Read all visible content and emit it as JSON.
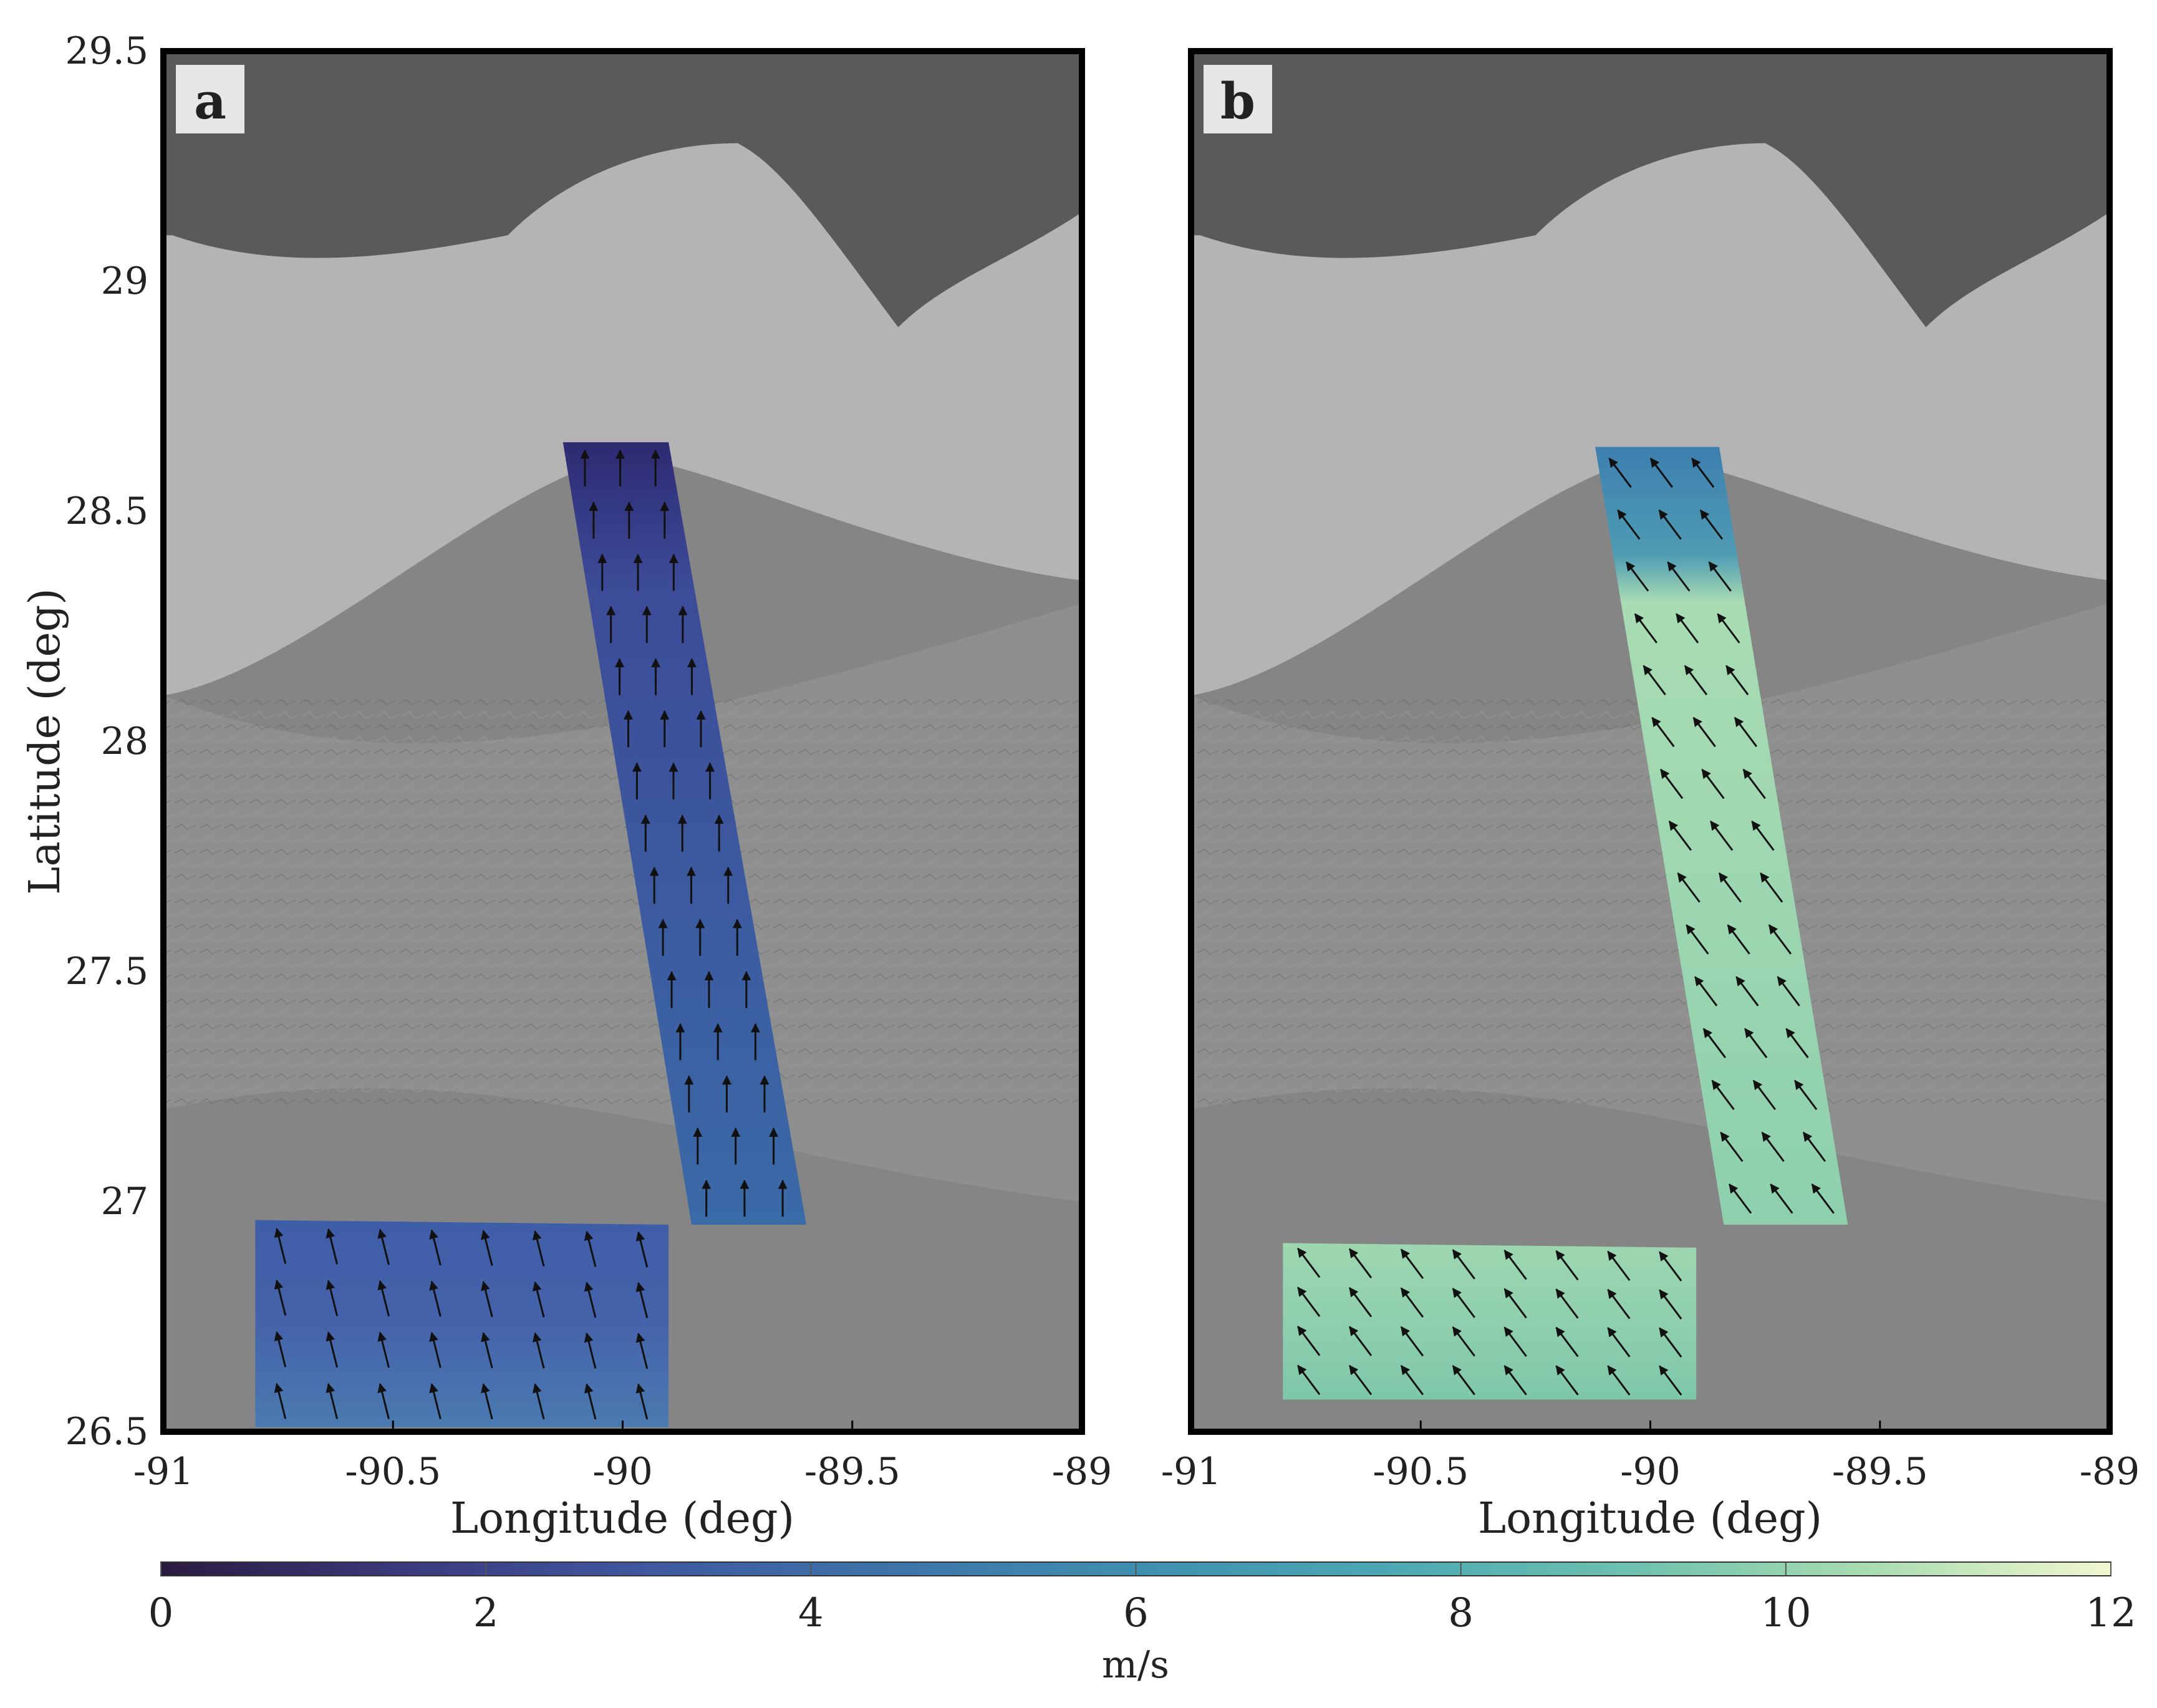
{
  "panels": [
    {
      "id": "a",
      "label": "a",
      "xlabel": "Longitude (deg)",
      "lon_range": [
        -91,
        -89
      ],
      "lat_range": [
        26.5,
        29.5
      ],
      "x_ticks": [
        "-91",
        "-90.5",
        "-90",
        "-89.5",
        "-89"
      ],
      "swaths": [
        {
          "name": "north-south-swath",
          "corners_lonlat": [
            [
              -90.13,
              28.65
            ],
            [
              -89.9,
              28.65
            ],
            [
              -89.6,
              26.95
            ],
            [
              -89.85,
              26.95
            ]
          ],
          "speed_ms": 3.3,
          "gradient": [
            {
              "offset": 0,
              "color": "#2e2a72"
            },
            {
              "offset": 0.18,
              "color": "#3c4b98"
            },
            {
              "offset": 1,
              "color": "#3b6aa8"
            }
          ],
          "arrow_direction": "north",
          "arrow_rows": 15,
          "arrow_cols": 3
        },
        {
          "name": "east-west-swath",
          "corners_lonlat": [
            [
              -90.8,
              26.96
            ],
            [
              -89.9,
              26.95
            ],
            [
              -89.9,
              26.51
            ],
            [
              -90.8,
              26.51
            ]
          ],
          "speed_ms": 3.6,
          "gradient": [
            {
              "offset": 0,
              "color": "#3f5ea8"
            },
            {
              "offset": 0.5,
              "color": "#4563aa"
            },
            {
              "offset": 1,
              "color": "#4a7ab0"
            }
          ],
          "arrow_direction": "north-northwest",
          "arrow_rows": 4,
          "arrow_cols": 8
        }
      ]
    },
    {
      "id": "b",
      "label": "b",
      "xlabel": "Longitude (deg)",
      "lon_range": [
        -91,
        -89
      ],
      "lat_range": [
        26.5,
        29.5
      ],
      "x_ticks": [
        "-91",
        "-90.5",
        "-90",
        "-89.5",
        "-89"
      ],
      "swaths": [
        {
          "name": "north-south-swath",
          "corners_lonlat": [
            [
              -90.12,
              28.64
            ],
            [
              -89.85,
              28.64
            ],
            [
              -89.57,
              26.95
            ],
            [
              -89.84,
              26.95
            ]
          ],
          "speed_ms": 9.0,
          "gradient": [
            {
              "offset": 0,
              "color": "#3d7fb0"
            },
            {
              "offset": 0.14,
              "color": "#4f9cb4"
            },
            {
              "offset": 0.2,
              "color": "#a9dcb2"
            },
            {
              "offset": 1,
              "color": "#8ed0ae"
            }
          ],
          "arrow_direction": "northwest",
          "arrow_rows": 15,
          "arrow_cols": 3
        },
        {
          "name": "east-west-swath",
          "corners_lonlat": [
            [
              -90.8,
              26.91
            ],
            [
              -89.9,
              26.9
            ],
            [
              -89.9,
              26.57
            ],
            [
              -90.8,
              26.57
            ]
          ],
          "speed_ms": 9.5,
          "gradient": [
            {
              "offset": 0,
              "color": "#9dd7b0"
            },
            {
              "offset": 0.5,
              "color": "#8fcfad"
            },
            {
              "offset": 1,
              "color": "#7ec7aa"
            }
          ],
          "arrow_direction": "northwest",
          "arrow_rows": 4,
          "arrow_cols": 8
        }
      ]
    }
  ],
  "ylabel": "Latitude (deg)",
  "y_ticks": [
    "26.5",
    "27",
    "27.5",
    "28",
    "28.5",
    "29",
    "29.5"
  ],
  "basemap": {
    "land_color": "#5a5a5a",
    "shelf_color": "#b4b4b4",
    "slope_color": "#8f8f8f",
    "deep_color": "#858585"
  },
  "colorbar": {
    "range": [
      0,
      12
    ],
    "ticks": [
      "0",
      "2",
      "4",
      "6",
      "8",
      "10",
      "12"
    ],
    "unit_label": "m/s",
    "colormap": [
      "#2a1b3f",
      "#3c3a7e",
      "#3f58a0",
      "#3e74aa",
      "#3f8fb0",
      "#4aa8b3",
      "#6cc0ae",
      "#a8dcb0",
      "#f1f7cf"
    ]
  }
}
